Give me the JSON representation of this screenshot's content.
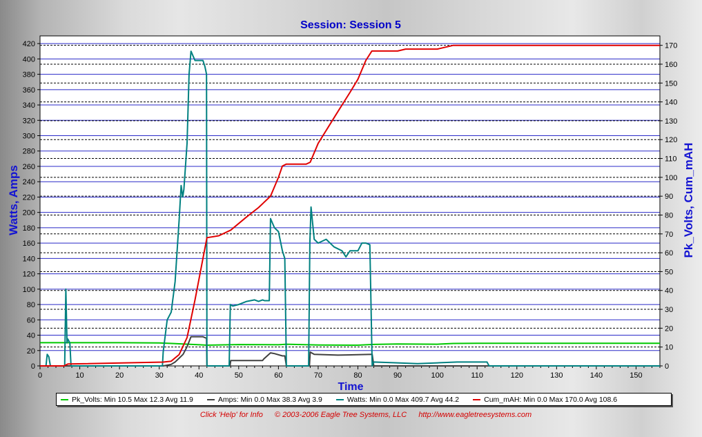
{
  "chart_data": {
    "type": "line",
    "title": "Session: Session 5",
    "xlabel": "Time",
    "ylabel_left": "Watts, Amps",
    "ylabel_right": "Pk_Volts, Cum_mAH",
    "xlim": [
      0,
      156
    ],
    "ylim_left": [
      0,
      430
    ],
    "ylim_right": [
      0,
      175
    ],
    "x_ticks": [
      0,
      10,
      20,
      30,
      40,
      50,
      60,
      70,
      80,
      90,
      100,
      110,
      120,
      130,
      140,
      150
    ],
    "y_left_ticks": [
      0,
      20,
      40,
      60,
      80,
      100,
      120,
      140,
      160,
      180,
      200,
      220,
      240,
      260,
      280,
      300,
      320,
      340,
      360,
      380,
      400,
      420
    ],
    "y_right_ticks": [
      0,
      10,
      20,
      30,
      40,
      50,
      60,
      70,
      80,
      90,
      100,
      110,
      120,
      130,
      140,
      150,
      160,
      170
    ],
    "grid": true,
    "series": [
      {
        "name": "Pk_Volts",
        "axis": "right",
        "color": "#00c800",
        "legend": "Pk_Volts:  Min 10.5 Max 12.3 Avg 11.9",
        "x": [
          0,
          5,
          10,
          20,
          30,
          35,
          40,
          42,
          50,
          60,
          62,
          70,
          80,
          84,
          90,
          100,
          104,
          110,
          120,
          130,
          140,
          150,
          156
        ],
        "y": [
          12.3,
          12.3,
          12.3,
          12.3,
          12.2,
          11.7,
          11.2,
          11.0,
          11.3,
          11.2,
          11.5,
          11.1,
          11.0,
          11.4,
          11.6,
          11.5,
          11.9,
          12.0,
          12.0,
          12.0,
          12.0,
          12.0,
          12.0
        ]
      },
      {
        "name": "Amps",
        "axis": "left",
        "color": "#404040",
        "legend": "Amps:  Min 0.0 Max 38.3 Avg 3.9",
        "x": [
          0,
          31,
          33,
          34,
          35,
          36,
          37,
          38,
          41,
          41.9,
          42,
          47.8,
          48,
          56,
          56.3,
          58,
          59,
          61,
          61.6,
          62,
          67.8,
          68,
          69,
          75,
          83.6,
          84,
          156
        ],
        "y": [
          0,
          0,
          2,
          5,
          10,
          15,
          25,
          38,
          38,
          36,
          0,
          0,
          7,
          7,
          9,
          17,
          16,
          13,
          13,
          0,
          0,
          18,
          15,
          14,
          15,
          0,
          0
        ]
      },
      {
        "name": "Watts",
        "axis": "left",
        "color": "#008080",
        "legend": "Watts:  Min 0.0 Max 409.7 Avg 44.2",
        "x": [
          0,
          1.5,
          1.8,
          2.2,
          2.6,
          6.2,
          6.5,
          6.8,
          7.0,
          7.5,
          7.8,
          30.8,
          31,
          32,
          33,
          34,
          34.5,
          35,
          35.5,
          35.9,
          36.2,
          37,
          37.5,
          38,
          39,
          40,
          41,
          41.5,
          41.9,
          42,
          47.6,
          47.9,
          48.5,
          50,
          52,
          54,
          55,
          56,
          56.5,
          57.7,
          58,
          59,
          60,
          61,
          61.6,
          62,
          67.6,
          67.9,
          68.2,
          69,
          70,
          72,
          74,
          76,
          77,
          78,
          79,
          80,
          81,
          82,
          83,
          83.6,
          84,
          90,
          95,
          100,
          105,
          110,
          112.5,
          113,
          156
        ],
        "y": [
          0,
          0,
          15,
          12,
          0,
          0,
          100,
          30,
          35,
          30,
          0,
          0,
          18,
          60,
          70,
          110,
          150,
          190,
          235,
          220,
          230,
          290,
          380,
          410,
          398,
          398,
          398,
          390,
          380,
          0,
          0,
          80,
          78,
          80,
          84,
          86,
          84,
          86,
          85,
          85,
          192,
          180,
          175,
          150,
          140,
          0,
          0,
          160,
          207,
          165,
          160,
          165,
          155,
          150,
          142,
          150,
          150,
          150,
          160,
          160,
          158,
          0,
          5,
          4,
          3,
          4,
          5,
          5,
          5,
          0,
          0
        ]
      },
      {
        "name": "Cum_mAH",
        "axis": "right",
        "color": "#e00000",
        "legend": "Cum_mAH:  Min 0.0 Max 170.0 Avg 108.6",
        "x": [
          0,
          1,
          6,
          7,
          31,
          33,
          35,
          37,
          39,
          42,
          45,
          48,
          52,
          55,
          58,
          60,
          61,
          62,
          67,
          68,
          70,
          75,
          78,
          80,
          82,
          83.5,
          90,
          92,
          100,
          104,
          156
        ],
        "y": [
          0,
          0,
          0,
          1,
          2,
          2.5,
          6,
          15,
          35,
          68,
          69,
          72,
          79,
          84,
          90,
          100,
          106,
          107,
          107,
          108,
          118,
          135,
          145,
          152,
          162,
          167,
          167,
          168,
          168,
          170,
          170
        ]
      }
    ]
  },
  "footer": {
    "help": "Click 'Help' for Info",
    "copyright": "© 2003-2006 Eagle Tree Systems, LLC",
    "url": "http://www.eagletreesystems.com"
  }
}
